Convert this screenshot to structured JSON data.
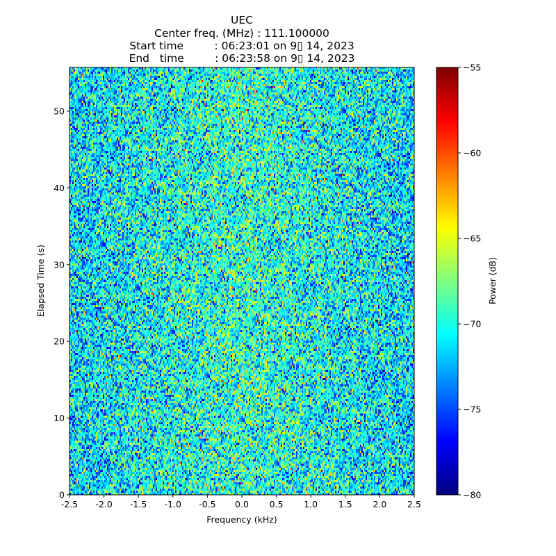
{
  "chart_data": {
    "type": "heatmap",
    "title_lines": [
      "UEC",
      "Center freq. (MHz) : 111.100000",
      "Start time         : 06:23:01 on 9▯ 14, 2023",
      "End   time         : 06:23:58 on 9▯ 14, 2023"
    ],
    "xlabel": "Frequency (kHz)",
    "ylabel": "Elapsed Time (s)",
    "xlim": [
      -2.5,
      2.5
    ],
    "ylim": [
      0,
      55.7
    ],
    "xticks": [
      -2.5,
      -2.0,
      -1.5,
      -1.0,
      -0.5,
      0.0,
      0.5,
      1.0,
      1.5,
      2.0,
      2.5
    ],
    "xtick_labels": [
      "-2.5",
      "-2.0",
      "-1.5",
      "-1.0",
      "-0.5",
      "0.0",
      "0.5",
      "1.0",
      "1.5",
      "2.0",
      "2.5"
    ],
    "yticks": [
      0,
      10,
      20,
      30,
      40,
      50
    ],
    "ytick_labels": [
      "0",
      "10",
      "20",
      "30",
      "40",
      "50"
    ],
    "colormap": "jet",
    "colorbar": {
      "label": "Power (dB)",
      "range": [
        -80,
        -55
      ],
      "ticks": [
        -80,
        -75,
        -70,
        -65,
        -60,
        -55
      ],
      "tick_labels": [
        "−80",
        "−75",
        "−70",
        "−65",
        "−60",
        "−55"
      ]
    },
    "grid": {
      "columns": 248,
      "rows": 205
    },
    "value_model": {
      "description": "noise",
      "mean_edge_db": -71.5,
      "mean_center_db": -69.5,
      "std_db": 3.2,
      "seed": 7
    }
  }
}
